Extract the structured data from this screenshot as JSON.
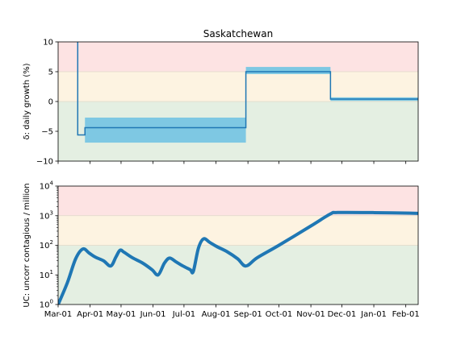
{
  "chart_data": [
    {
      "type": "line",
      "title": "Saskatchewan",
      "ylabel": "δ: daily growth (%)",
      "ylim": [
        -10,
        10
      ],
      "yticks": [
        10,
        5,
        0,
        -5,
        -10
      ],
      "ytick_labels": [
        "10",
        "5",
        "0",
        "−5",
        "−10"
      ],
      "xlim": [
        "2020-03-01",
        "2021-02-13"
      ],
      "bands": [
        {
          "from": 5,
          "to": 10,
          "color": "#fde3e3"
        },
        {
          "from": 0,
          "to": 5,
          "color": "#fdf3e1"
        },
        {
          "from": -10,
          "to": 0,
          "color": "#e4efe2"
        }
      ],
      "series": [
        {
          "kind": "step",
          "color": "#1f77b4",
          "points": [
            {
              "x": "2020-03-20",
              "y": 10
            },
            {
              "x": "2020-03-20",
              "y": -5.6
            },
            {
              "x": "2020-03-27",
              "y": -5.6
            },
            {
              "x": "2020-03-27",
              "y": -4.4
            },
            {
              "x": "2020-08-30",
              "y": -4.4
            },
            {
              "x": "2020-08-30",
              "y": 5.0
            },
            {
              "x": "2020-11-20",
              "y": 5.0
            },
            {
              "x": "2020-11-20",
              "y": 0.4
            },
            {
              "x": "2021-02-13",
              "y": 0.4
            }
          ]
        }
      ],
      "intervals": [
        {
          "x0": "2020-03-27",
          "x1": "2020-08-30",
          "low": -6.9,
          "high": -2.7,
          "color": "#7ec8e3"
        },
        {
          "x0": "2020-08-30",
          "x1": "2020-11-20",
          "low": 4.6,
          "high": 5.8,
          "color": "#7ec8e3"
        },
        {
          "x0": "2020-11-20",
          "x1": "2021-02-13",
          "low": 0.1,
          "high": 0.7,
          "color": "#7ec8e3"
        }
      ]
    },
    {
      "type": "line",
      "ylabel": "UC: uncorr contagious / million",
      "yscale": "log",
      "ylim": [
        1,
        10000
      ],
      "yticks": [
        1,
        10,
        100,
        1000,
        10000
      ],
      "ytick_labels": [
        [
          "10",
          "0"
        ],
        [
          "10",
          "1"
        ],
        [
          "10",
          "2"
        ],
        [
          "10",
          "3"
        ],
        [
          "10",
          "4"
        ]
      ],
      "xlim": [
        "2020-03-01",
        "2021-02-13"
      ],
      "xticks": [
        "2020-03-01",
        "2020-04-01",
        "2020-05-01",
        "2020-06-01",
        "2020-07-01",
        "2020-08-01",
        "2020-09-01",
        "2020-10-01",
        "2020-11-01",
        "2020-12-01",
        "2021-01-01",
        "2021-02-01"
      ],
      "xtick_labels": [
        "Mar-01",
        "Apr-01",
        "May-01",
        "Jun-01",
        "Jul-01",
        "Aug-01",
        "Sep-01",
        "Oct-01",
        "Nov-01",
        "Dec-01",
        "Jan-01",
        "Feb-01"
      ],
      "bands": [
        {
          "from": 1000,
          "to": 10000,
          "color": "#fde3e3"
        },
        {
          "from": 100,
          "to": 1000,
          "color": "#fdf3e1"
        },
        {
          "from": 1,
          "to": 100,
          "color": "#e4efe2"
        }
      ],
      "series": [
        {
          "kind": "line",
          "color": "#1f77b4",
          "points": [
            {
              "x": "2020-03-01",
              "y": 1.0
            },
            {
              "x": "2020-03-10",
              "y": 5.5
            },
            {
              "x": "2020-03-18",
              "y": 35
            },
            {
              "x": "2020-03-25",
              "y": 75
            },
            {
              "x": "2020-03-31",
              "y": 55
            },
            {
              "x": "2020-04-06",
              "y": 40
            },
            {
              "x": "2020-04-14",
              "y": 30
            },
            {
              "x": "2020-04-21",
              "y": 20
            },
            {
              "x": "2020-04-26",
              "y": 40
            },
            {
              "x": "2020-04-30",
              "y": 68
            },
            {
              "x": "2020-05-04",
              "y": 58
            },
            {
              "x": "2020-05-12",
              "y": 38
            },
            {
              "x": "2020-05-22",
              "y": 25
            },
            {
              "x": "2020-05-31",
              "y": 15
            },
            {
              "x": "2020-06-06",
              "y": 10
            },
            {
              "x": "2020-06-12",
              "y": 25
            },
            {
              "x": "2020-06-17",
              "y": 37
            },
            {
              "x": "2020-06-23",
              "y": 28
            },
            {
              "x": "2020-06-30",
              "y": 20
            },
            {
              "x": "2020-07-07",
              "y": 15
            },
            {
              "x": "2020-07-10",
              "y": 13
            },
            {
              "x": "2020-07-15",
              "y": 80
            },
            {
              "x": "2020-07-20",
              "y": 165
            },
            {
              "x": "2020-07-26",
              "y": 125
            },
            {
              "x": "2020-08-02",
              "y": 90
            },
            {
              "x": "2020-08-12",
              "y": 60
            },
            {
              "x": "2020-08-22",
              "y": 35
            },
            {
              "x": "2020-08-30",
              "y": 20
            },
            {
              "x": "2020-09-10",
              "y": 38
            },
            {
              "x": "2020-10-01",
              "y": 100
            },
            {
              "x": "2020-11-01",
              "y": 450
            },
            {
              "x": "2020-11-20",
              "y": 1150
            },
            {
              "x": "2020-11-27",
              "y": 1280
            },
            {
              "x": "2021-01-01",
              "y": 1270
            },
            {
              "x": "2021-02-13",
              "y": 1200
            }
          ]
        }
      ]
    }
  ]
}
